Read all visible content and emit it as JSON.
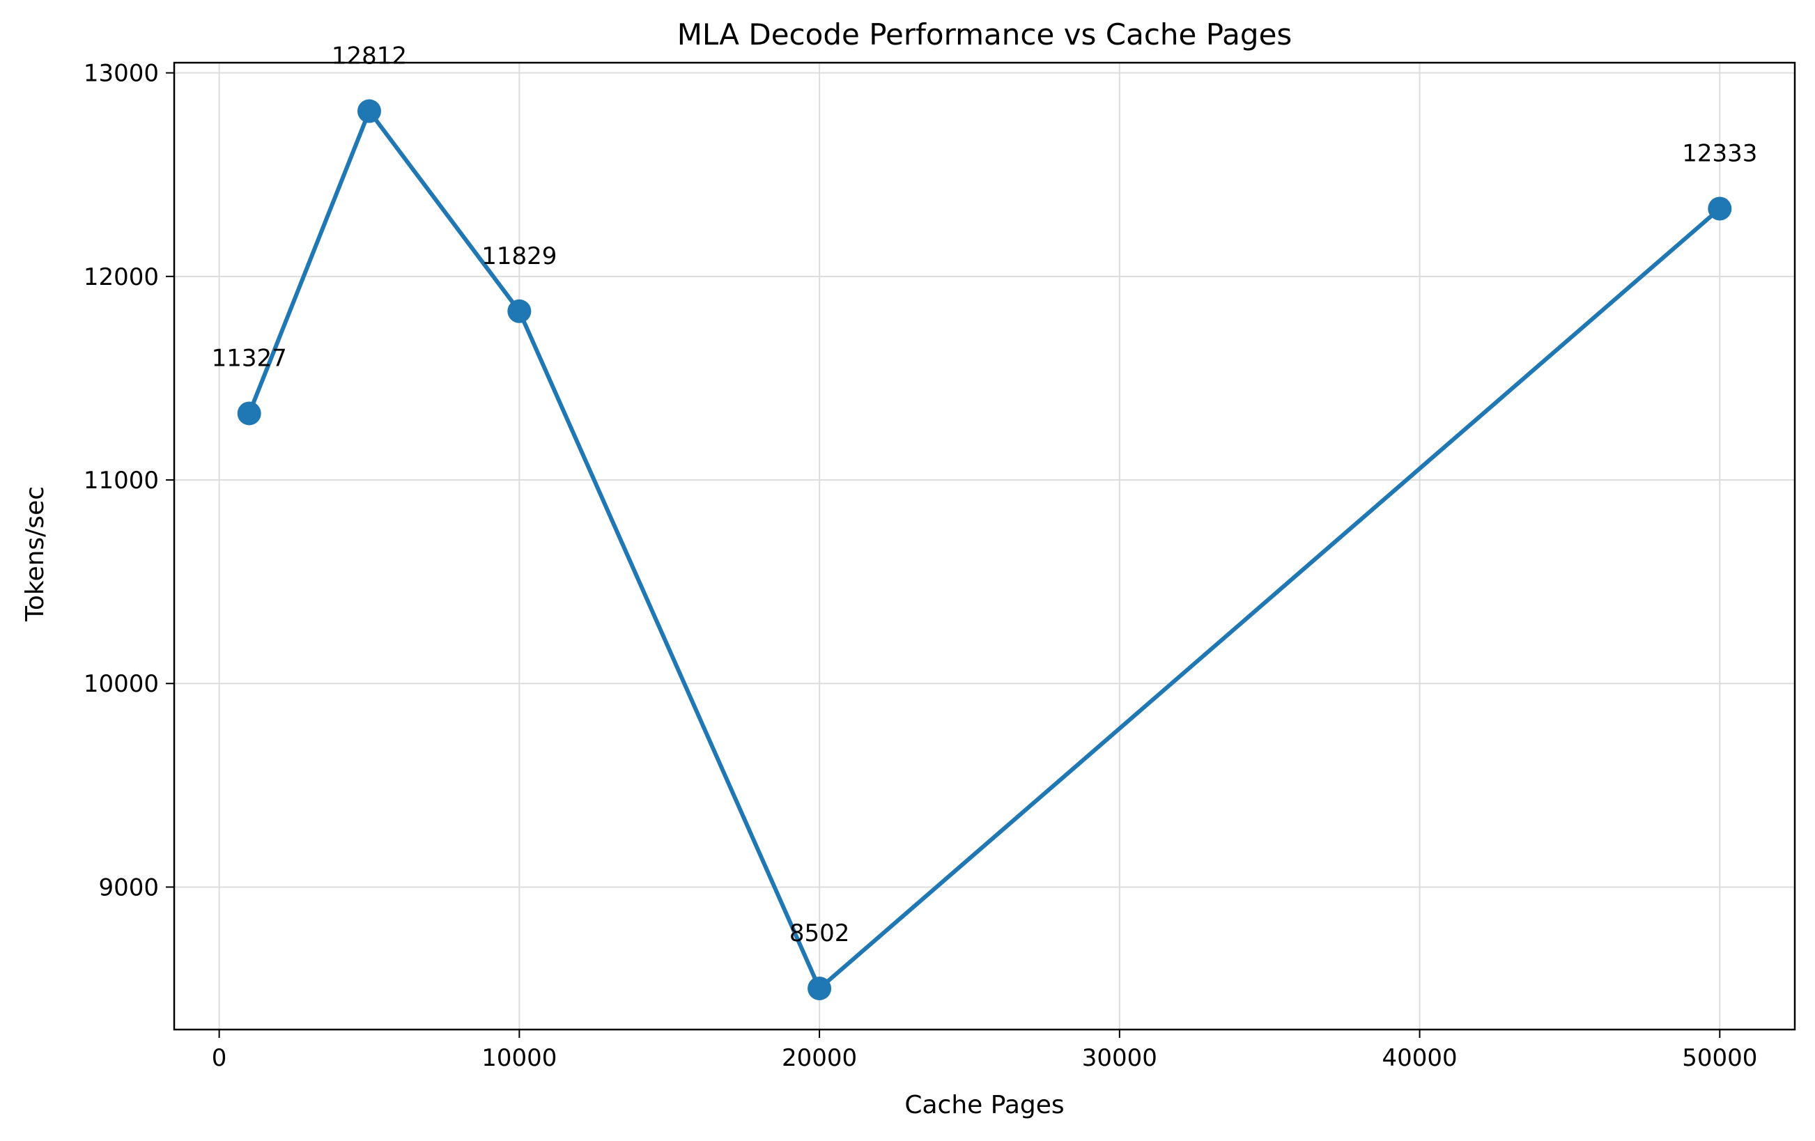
{
  "chart_data": {
    "type": "line",
    "title": "MLA Decode Performance vs Cache Pages",
    "xlabel": "Cache Pages",
    "ylabel": "Tokens/sec",
    "xlim": [
      -1500,
      52500
    ],
    "ylim": [
      8300,
      13050
    ],
    "xticks": [
      0,
      10000,
      20000,
      30000,
      40000,
      50000
    ],
    "yticks": [
      9000,
      10000,
      11000,
      12000,
      13000
    ],
    "grid": true,
    "series": [
      {
        "x": [
          1000,
          5000,
          10000,
          20000,
          50000
        ],
        "y": [
          11327,
          12812,
          11829,
          8502,
          12333
        ],
        "labels": [
          "11327",
          "12812",
          "11829",
          "8502",
          "12333"
        ],
        "color": "#1f77b4",
        "marker": "circle"
      }
    ]
  }
}
